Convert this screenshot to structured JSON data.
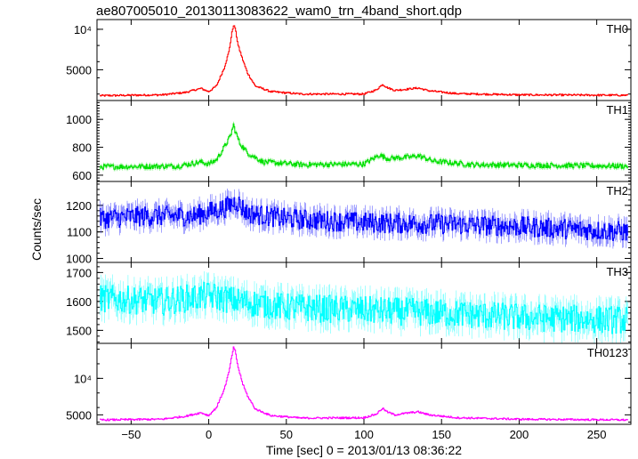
{
  "chart_data": {
    "type": "line",
    "title": "ae807005010_20130113083622_wam0_trn_4band_short.qdp",
    "xlabel": "Time [sec] 0 = 2013/01/13 08:36:22",
    "ylabel": "Counts/sec",
    "xlim": [
      -72,
      272
    ],
    "x_ticks": [
      -50,
      0,
      50,
      100,
      150,
      200,
      250
    ],
    "grid": false,
    "legend": "none",
    "series": [
      {
        "name": "TH0",
        "color": "#ff0000",
        "ylim": [
          1200,
          11200
        ],
        "ticks": [
          {
            "v": 10000,
            "t": "10⁴"
          },
          {
            "v": 5000,
            "t": "5000"
          }
        ],
        "noise": 110,
        "points": [
          [
            -70,
            1800
          ],
          [
            -30,
            1900
          ],
          [
            -15,
            2200
          ],
          [
            -5,
            2700
          ],
          [
            0,
            2300
          ],
          [
            5,
            3000
          ],
          [
            10,
            5200
          ],
          [
            13,
            7200
          ],
          [
            15,
            9600
          ],
          [
            16,
            10500
          ],
          [
            17,
            10200
          ],
          [
            19,
            8000
          ],
          [
            22,
            6200
          ],
          [
            25,
            4600
          ],
          [
            30,
            3000
          ],
          [
            40,
            2300
          ],
          [
            60,
            2000
          ],
          [
            100,
            2000
          ],
          [
            108,
            2500
          ],
          [
            112,
            3200
          ],
          [
            115,
            2800
          ],
          [
            120,
            2450
          ],
          [
            130,
            2650
          ],
          [
            135,
            2750
          ],
          [
            142,
            2400
          ],
          [
            160,
            2050
          ],
          [
            200,
            1900
          ],
          [
            270,
            1850
          ]
        ]
      },
      {
        "name": "TH1",
        "color": "#00e000",
        "ylim": [
          555,
          1135
        ],
        "ticks": [
          {
            "v": 1000,
            "t": "1000"
          },
          {
            "v": 800,
            "t": "800"
          },
          {
            "v": 600,
            "t": "600"
          }
        ],
        "noise": 18,
        "points": [
          [
            -70,
            660
          ],
          [
            -20,
            665
          ],
          [
            -5,
            695
          ],
          [
            0,
            680
          ],
          [
            5,
            710
          ],
          [
            10,
            800
          ],
          [
            14,
            880
          ],
          [
            16,
            960
          ],
          [
            17,
            920
          ],
          [
            20,
            830
          ],
          [
            25,
            760
          ],
          [
            35,
            695
          ],
          [
            60,
            675
          ],
          [
            100,
            680
          ],
          [
            110,
            745
          ],
          [
            115,
            720
          ],
          [
            130,
            730
          ],
          [
            135,
            740
          ],
          [
            145,
            700
          ],
          [
            170,
            675
          ],
          [
            270,
            665
          ]
        ]
      },
      {
        "name": "TH2",
        "color": "#0000ff",
        "ylim": [
          985,
          1290
        ],
        "ticks": [
          {
            "v": 1200,
            "t": "1200"
          },
          {
            "v": 1100,
            "t": "1100"
          },
          {
            "v": 1000,
            "t": "1000"
          }
        ],
        "noise": 38,
        "points": [
          [
            -70,
            1150
          ],
          [
            -40,
            1160
          ],
          [
            -10,
            1160
          ],
          [
            10,
            1190
          ],
          [
            18,
            1215
          ],
          [
            25,
            1170
          ],
          [
            50,
            1150
          ],
          [
            100,
            1135
          ],
          [
            150,
            1130
          ],
          [
            200,
            1120
          ],
          [
            270,
            1100
          ]
        ]
      },
      {
        "name": "TH3",
        "color": "#00ffff",
        "ylim": [
          1455,
          1735
        ],
        "ticks": [
          {
            "v": 1700,
            "t": "1700"
          },
          {
            "v": 1600,
            "t": "1600"
          },
          {
            "v": 1500,
            "t": "1500"
          }
        ],
        "noise": 48,
        "points": [
          [
            -70,
            1610
          ],
          [
            -30,
            1600
          ],
          [
            0,
            1620
          ],
          [
            20,
            1600
          ],
          [
            50,
            1580
          ],
          [
            100,
            1570
          ],
          [
            150,
            1560
          ],
          [
            200,
            1545
          ],
          [
            270,
            1535
          ]
        ]
      },
      {
        "name": "TH0123",
        "color": "#ff00ff",
        "ylim": [
          3700,
          14800
        ],
        "ticks": [
          {
            "v": 10000,
            "t": "10⁴"
          },
          {
            "v": 5000,
            "t": "5000"
          }
        ],
        "noise": 120,
        "points": [
          [
            -70,
            4300
          ],
          [
            -30,
            4400
          ],
          [
            -15,
            4800
          ],
          [
            -5,
            5300
          ],
          [
            0,
            4900
          ],
          [
            5,
            6000
          ],
          [
            10,
            8500
          ],
          [
            13,
            10800
          ],
          [
            15,
            13200
          ],
          [
            16,
            14200
          ],
          [
            17,
            13800
          ],
          [
            19,
            11500
          ],
          [
            22,
            9200
          ],
          [
            25,
            7600
          ],
          [
            30,
            5800
          ],
          [
            40,
            4900
          ],
          [
            60,
            4550
          ],
          [
            100,
            4600
          ],
          [
            108,
            5100
          ],
          [
            112,
            5900
          ],
          [
            115,
            5400
          ],
          [
            120,
            5000
          ],
          [
            130,
            5300
          ],
          [
            135,
            5400
          ],
          [
            142,
            5000
          ],
          [
            160,
            4600
          ],
          [
            200,
            4400
          ],
          [
            270,
            4300
          ]
        ]
      }
    ]
  }
}
